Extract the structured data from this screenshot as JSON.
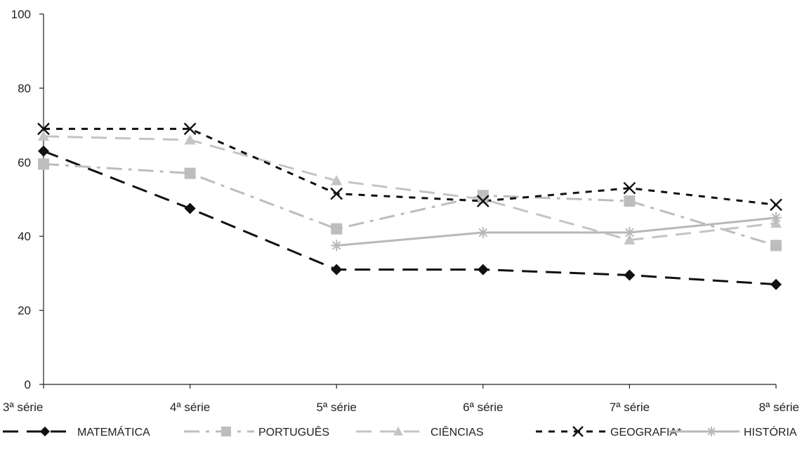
{
  "chart_data": {
    "type": "line",
    "title": "",
    "xlabel": "",
    "ylabel": "",
    "categories": [
      "3ª série",
      "4ª série",
      "5ª série",
      "6ª série",
      "7ª série",
      "8ª série"
    ],
    "ylim": [
      0,
      100
    ],
    "yticks": [
      "0",
      "20",
      "40",
      "60",
      "80",
      "100"
    ],
    "grid": false,
    "legend_position": "bottom",
    "series": [
      {
        "name": "MATEMÁTICA",
        "values": [
          63,
          47.5,
          31,
          31,
          29.5,
          27
        ],
        "color": "#111111",
        "marker": "diamond",
        "dash": "long-dash",
        "marker_icon": "diamond-icon"
      },
      {
        "name": "PORTUGUÊS",
        "values": [
          59.5,
          57,
          42,
          51,
          49.5,
          37.5
        ],
        "color": "#bdbdbd",
        "marker": "square",
        "dash": "dash-dot",
        "marker_icon": "square-icon"
      },
      {
        "name": "CIÊNCIAS",
        "values": [
          67,
          66,
          55,
          50,
          39,
          43.5
        ],
        "color": "#c4c4c4",
        "marker": "triangle",
        "dash": "long-dash",
        "marker_icon": "triangle-icon"
      },
      {
        "name": "GEOGRAFIA*",
        "values": [
          69,
          69,
          51.5,
          49.5,
          53,
          48.5
        ],
        "color": "#111111",
        "marker": "x",
        "dash": "short-dash",
        "marker_icon": "x-icon"
      },
      {
        "name": "HISTÓRIA",
        "values": [
          null,
          null,
          37.5,
          41,
          41,
          45
        ],
        "color": "#b8b8b8",
        "marker": "asterisk",
        "dash": "solid",
        "marker_icon": "asterisk-icon"
      }
    ]
  }
}
